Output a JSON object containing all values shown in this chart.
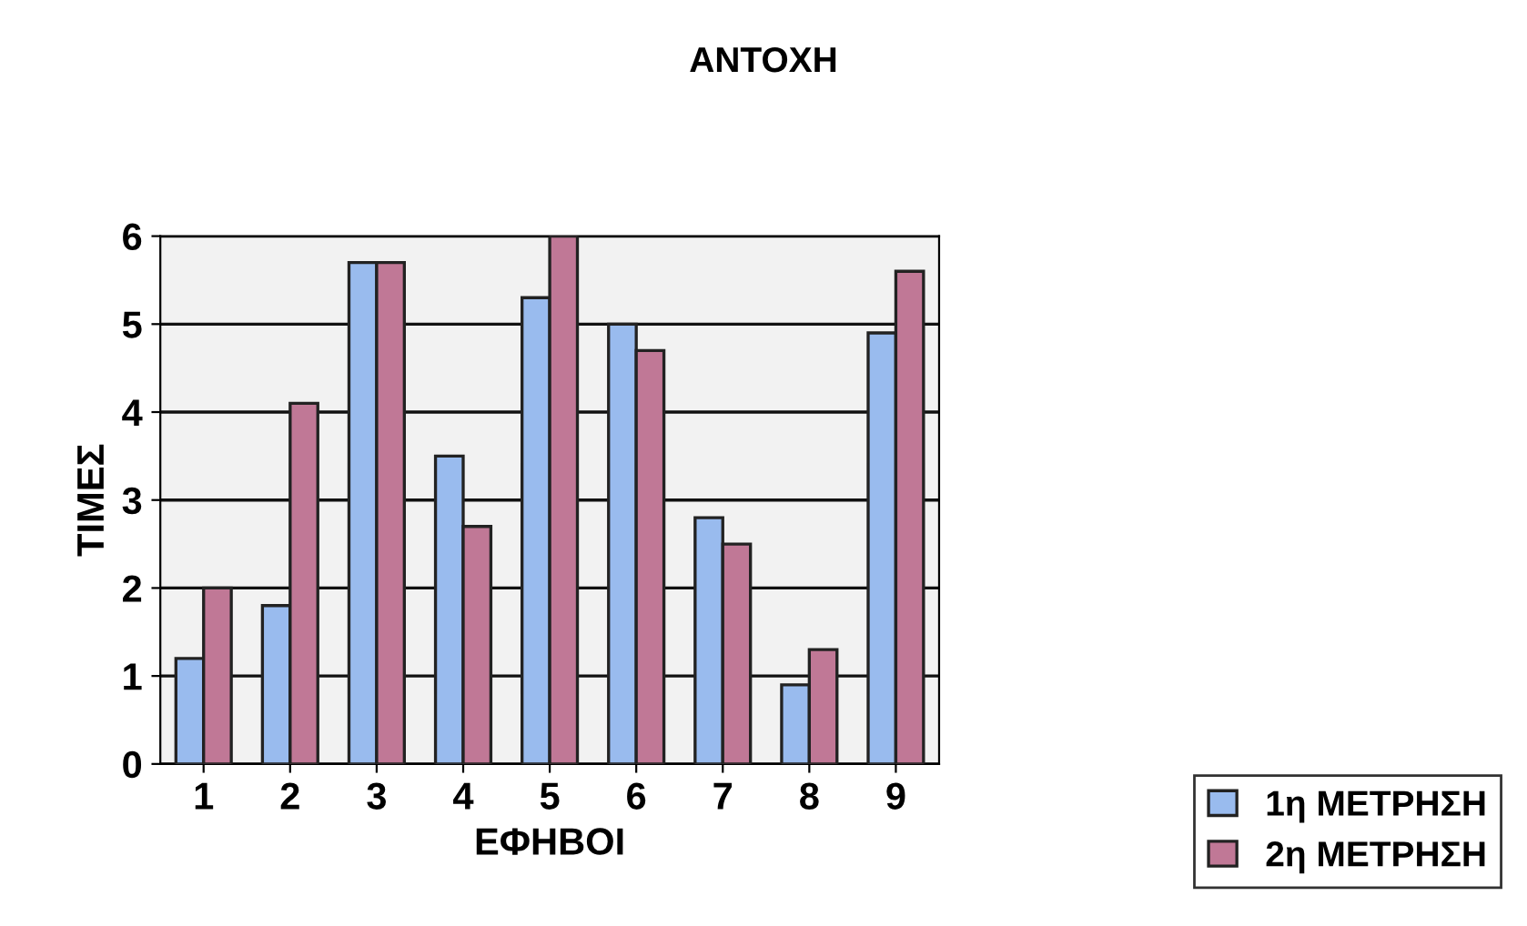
{
  "chart_data": {
    "type": "bar",
    "title": "ΑΝΤΟΧΗ",
    "xlabel": "ΕΦΗΒΟΙ",
    "ylabel": "ΤΙΜΕΣ",
    "categories": [
      "1",
      "2",
      "3",
      "4",
      "5",
      "6",
      "7",
      "8",
      "9"
    ],
    "series": [
      {
        "name": "1η ΜΕΤΡΗΣΗ",
        "color": "#99bbee",
        "values": [
          1.2,
          1.8,
          5.7,
          3.5,
          5.3,
          5.0,
          2.8,
          0.9,
          4.9
        ]
      },
      {
        "name": "2η ΜΕΤΡΗΣΗ",
        "color": "#c07896",
        "values": [
          2.0,
          4.1,
          5.7,
          2.7,
          6.0,
          4.7,
          2.5,
          1.3,
          5.6
        ]
      }
    ],
    "ylim": [
      0,
      6
    ],
    "yticks": [
      0,
      1,
      2,
      3,
      4,
      5,
      6
    ],
    "grid": "y",
    "legend": "bottom right"
  }
}
